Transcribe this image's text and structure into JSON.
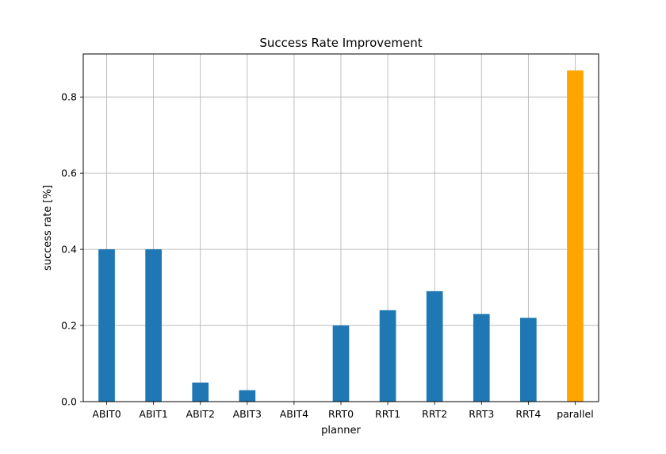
{
  "chart_data": {
    "type": "bar",
    "title": "Success Rate Improvement",
    "xlabel": "planner",
    "ylabel": "success rate [%]",
    "categories": [
      "ABIT0",
      "ABIT1",
      "ABIT2",
      "ABIT3",
      "ABIT4",
      "RRT0",
      "RRT1",
      "RRT2",
      "RRT3",
      "RRT4",
      "parallel"
    ],
    "values": [
      0.4,
      0.4,
      0.05,
      0.03,
      0.0,
      0.2,
      0.24,
      0.29,
      0.23,
      0.22,
      0.87
    ],
    "colors": [
      "#1f77b4",
      "#1f77b4",
      "#1f77b4",
      "#1f77b4",
      "#1f77b4",
      "#1f77b4",
      "#1f77b4",
      "#1f77b4",
      "#1f77b4",
      "#1f77b4",
      "#ffa500"
    ],
    "ylim": [
      0,
      0.913
    ],
    "yticks": [
      0.0,
      0.2,
      0.4,
      0.6,
      0.8
    ],
    "ytick_labels": [
      "0.0",
      "0.2",
      "0.4",
      "0.6",
      "0.8"
    ],
    "grid": true
  }
}
